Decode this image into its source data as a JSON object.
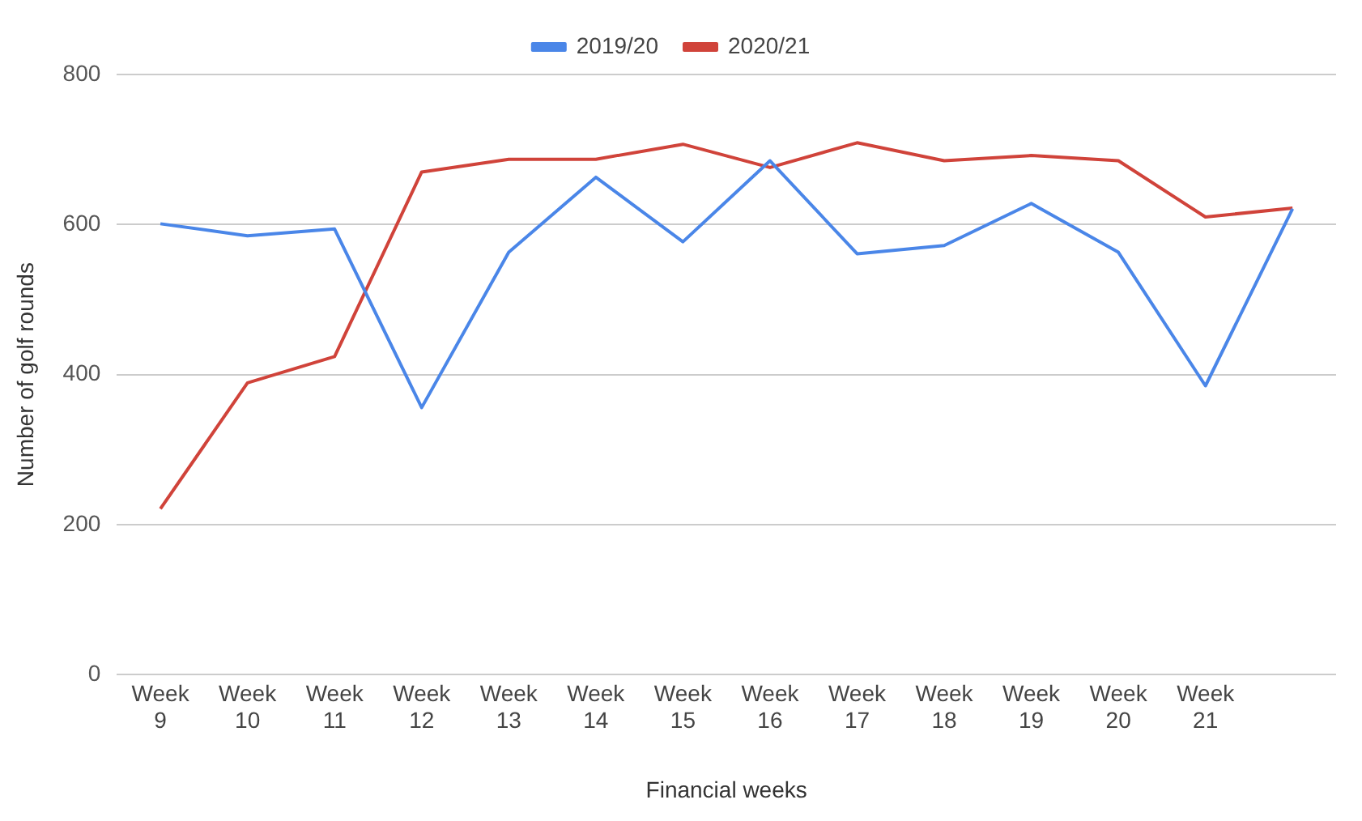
{
  "chart_data": {
    "type": "line",
    "xlabel": "Financial weeks",
    "ylabel": "Number of golf rounds",
    "categories": [
      "Week 9",
      "Week 10",
      "Week 11",
      "Week 12",
      "Week 13",
      "Week 14",
      "Week 15",
      "Week 16",
      "Week 17",
      "Week 18",
      "Week 19",
      "Week 20",
      "Week 21",
      null
    ],
    "series": [
      {
        "name": "2019/20",
        "color": "#4a86e8",
        "values": [
          601,
          585,
          594,
          356,
          563,
          663,
          577,
          685,
          561,
          572,
          628,
          563,
          385,
          621
        ]
      },
      {
        "name": "2020/21",
        "color": "#d0433a",
        "values": [
          221,
          389,
          424,
          670,
          687,
          687,
          707,
          676,
          709,
          685,
          692,
          685,
          610,
          622
        ]
      }
    ],
    "ylim": [
      0,
      800
    ],
    "yticks": [
      0,
      200,
      400,
      600,
      800
    ],
    "grid": "y",
    "legend": "top",
    "marker": "none",
    "line_style": "solid"
  }
}
